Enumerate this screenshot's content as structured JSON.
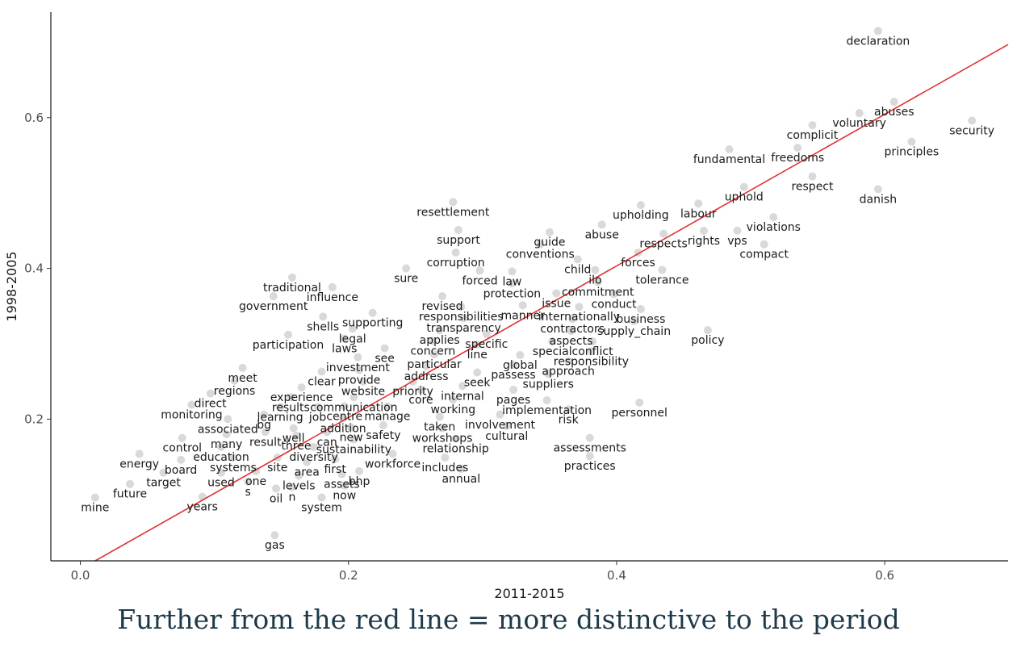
{
  "caption": "Further from the red line = more distinctive to the period",
  "chart_data": {
    "type": "scatter",
    "xlabel": "2011-2015",
    "ylabel": "1998-2005",
    "xlim": [
      -0.022,
      0.692
    ],
    "ylim": [
      0.012,
      0.74
    ],
    "x_ticks": [
      {
        "value": 0.0,
        "label": "0.0"
      },
      {
        "value": 0.2,
        "label": "0.2"
      },
      {
        "value": 0.4,
        "label": "0.4"
      },
      {
        "value": 0.6,
        "label": "0.6"
      }
    ],
    "y_ticks": [
      {
        "value": 0.2,
        "label": "0.2"
      },
      {
        "value": 0.4,
        "label": "0.4"
      },
      {
        "value": 0.6,
        "label": "0.6"
      }
    ],
    "grid": false,
    "reference_line": {
      "color": "#e03131",
      "points": [
        [
          0.011,
          0.012
        ],
        [
          0.692,
          0.697
        ]
      ]
    },
    "point_color": "#cccccc",
    "words": [
      {
        "w": "declaration",
        "x": 0.595,
        "y": 0.715
      },
      {
        "w": "abuses",
        "x": 0.607,
        "y": 0.621
      },
      {
        "w": "voluntary",
        "x": 0.581,
        "y": 0.606
      },
      {
        "w": "security",
        "x": 0.665,
        "y": 0.596
      },
      {
        "w": "complicit",
        "x": 0.546,
        "y": 0.59
      },
      {
        "w": "principles",
        "x": 0.62,
        "y": 0.568
      },
      {
        "w": "freedoms",
        "x": 0.535,
        "y": 0.56
      },
      {
        "w": "fundamental",
        "x": 0.484,
        "y": 0.558
      },
      {
        "w": "respect",
        "x": 0.546,
        "y": 0.522
      },
      {
        "w": "uphold",
        "x": 0.495,
        "y": 0.508
      },
      {
        "w": "danish",
        "x": 0.595,
        "y": 0.505
      },
      {
        "w": "resettlement",
        "x": 0.278,
        "y": 0.488
      },
      {
        "w": "upholding",
        "x": 0.418,
        "y": 0.484
      },
      {
        "w": "labour",
        "x": 0.461,
        "y": 0.486
      },
      {
        "w": "violations",
        "x": 0.517,
        "y": 0.468
      },
      {
        "w": "abuse",
        "x": 0.389,
        "y": 0.458
      },
      {
        "w": "support",
        "x": 0.282,
        "y": 0.451
      },
      {
        "w": "rights",
        "x": 0.465,
        "y": 0.45
      },
      {
        "w": "vps",
        "x": 0.49,
        "y": 0.45
      },
      {
        "w": "guide",
        "x": 0.35,
        "y": 0.448
      },
      {
        "w": "respects",
        "x": 0.435,
        "y": 0.446
      },
      {
        "w": "conventions",
        "x": 0.343,
        "y": 0.432
      },
      {
        "w": "compact",
        "x": 0.51,
        "y": 0.432
      },
      {
        "w": "forces",
        "x": 0.416,
        "y": 0.421
      },
      {
        "w": "corruption",
        "x": 0.28,
        "y": 0.421
      },
      {
        "w": "child",
        "x": 0.371,
        "y": 0.412
      },
      {
        "w": "sure",
        "x": 0.243,
        "y": 0.4
      },
      {
        "w": "forced",
        "x": 0.298,
        "y": 0.397
      },
      {
        "w": "law",
        "x": 0.322,
        "y": 0.396
      },
      {
        "w": "ilo",
        "x": 0.384,
        "y": 0.398
      },
      {
        "w": "tolerance",
        "x": 0.434,
        "y": 0.398
      },
      {
        "w": "traditional",
        "x": 0.158,
        "y": 0.388
      },
      {
        "w": "commitment",
        "x": 0.386,
        "y": 0.382
      },
      {
        "w": "protection",
        "x": 0.322,
        "y": 0.38
      },
      {
        "w": "influence",
        "x": 0.188,
        "y": 0.375
      },
      {
        "w": "issue",
        "x": 0.355,
        "y": 0.367
      },
      {
        "w": "conduct",
        "x": 0.398,
        "y": 0.366
      },
      {
        "w": "government",
        "x": 0.144,
        "y": 0.363
      },
      {
        "w": "revised",
        "x": 0.27,
        "y": 0.363
      },
      {
        "w": "manner",
        "x": 0.33,
        "y": 0.351
      },
      {
        "w": "internationally",
        "x": 0.372,
        "y": 0.349
      },
      {
        "w": "responsibilities",
        "x": 0.284,
        "y": 0.349
      },
      {
        "w": "business",
        "x": 0.418,
        "y": 0.346
      },
      {
        "w": "supporting",
        "x": 0.218,
        "y": 0.341
      },
      {
        "w": "shells",
        "x": 0.181,
        "y": 0.336
      },
      {
        "w": "contractors",
        "x": 0.367,
        "y": 0.333
      },
      {
        "w": "transparency",
        "x": 0.286,
        "y": 0.334
      },
      {
        "w": "supply_chain",
        "x": 0.413,
        "y": 0.33
      },
      {
        "w": "legal",
        "x": 0.203,
        "y": 0.32
      },
      {
        "w": "policy",
        "x": 0.468,
        "y": 0.318
      },
      {
        "w": "aspects",
        "x": 0.366,
        "y": 0.317
      },
      {
        "w": "applies",
        "x": 0.268,
        "y": 0.318
      },
      {
        "w": "participation",
        "x": 0.155,
        "y": 0.312
      },
      {
        "w": "specific",
        "x": 0.303,
        "y": 0.313
      },
      {
        "w": "laws",
        "x": 0.197,
        "y": 0.307
      },
      {
        "w": "concern",
        "x": 0.263,
        "y": 0.304
      },
      {
        "w": "special",
        "x": 0.352,
        "y": 0.303
      },
      {
        "w": "conflict",
        "x": 0.382,
        "y": 0.303
      },
      {
        "w": "line",
        "x": 0.296,
        "y": 0.299
      },
      {
        "w": "see",
        "x": 0.227,
        "y": 0.294
      },
      {
        "w": "responsibility",
        "x": 0.381,
        "y": 0.29
      },
      {
        "w": "particular",
        "x": 0.264,
        "y": 0.286
      },
      {
        "w": "global",
        "x": 0.328,
        "y": 0.285
      },
      {
        "w": "investment",
        "x": 0.207,
        "y": 0.282
      },
      {
        "w": "approach",
        "x": 0.364,
        "y": 0.277
      },
      {
        "w": "passess",
        "x": 0.323,
        "y": 0.272
      },
      {
        "w": "address",
        "x": 0.258,
        "y": 0.27
      },
      {
        "w": "meet",
        "x": 0.121,
        "y": 0.268
      },
      {
        "w": "provide",
        "x": 0.208,
        "y": 0.265
      },
      {
        "w": "clear",
        "x": 0.18,
        "y": 0.263
      },
      {
        "w": "seek",
        "x": 0.296,
        "y": 0.262
      },
      {
        "w": "suppliers",
        "x": 0.349,
        "y": 0.26
      },
      {
        "w": "regions",
        "x": 0.115,
        "y": 0.251
      },
      {
        "w": "website",
        "x": 0.211,
        "y": 0.25
      },
      {
        "w": "priority",
        "x": 0.248,
        "y": 0.25
      },
      {
        "w": "internal",
        "x": 0.285,
        "y": 0.244
      },
      {
        "w": "experience",
        "x": 0.165,
        "y": 0.242
      },
      {
        "w": "core",
        "x": 0.254,
        "y": 0.239
      },
      {
        "w": "pages",
        "x": 0.323,
        "y": 0.239
      },
      {
        "w": "direct",
        "x": 0.097,
        "y": 0.234
      },
      {
        "w": "results",
        "x": 0.157,
        "y": 0.229
      },
      {
        "w": "communication",
        "x": 0.204,
        "y": 0.229
      },
      {
        "w": "working",
        "x": 0.278,
        "y": 0.226
      },
      {
        "w": "implementation",
        "x": 0.348,
        "y": 0.225
      },
      {
        "w": "monitoring",
        "x": 0.083,
        "y": 0.219
      },
      {
        "w": "centre",
        "x": 0.197,
        "y": 0.217
      },
      {
        "w": "manage",
        "x": 0.229,
        "y": 0.217
      },
      {
        "w": "learning",
        "x": 0.149,
        "y": 0.216
      },
      {
        "w": "job",
        "x": 0.177,
        "y": 0.216
      },
      {
        "w": "personnel",
        "x": 0.417,
        "y": 0.222
      },
      {
        "w": "risk",
        "x": 0.364,
        "y": 0.213
      },
      {
        "w": "bg",
        "x": 0.137,
        "y": 0.206
      },
      {
        "w": "involvement",
        "x": 0.313,
        "y": 0.206
      },
      {
        "w": "taken",
        "x": 0.268,
        "y": 0.203
      },
      {
        "w": "associated",
        "x": 0.11,
        "y": 0.2
      },
      {
        "w": "addition",
        "x": 0.196,
        "y": 0.201
      },
      {
        "w": "cultural",
        "x": 0.318,
        "y": 0.191
      },
      {
        "w": "workshops",
        "x": 0.27,
        "y": 0.188
      },
      {
        "w": "well",
        "x": 0.159,
        "y": 0.188
      },
      {
        "w": "new",
        "x": 0.202,
        "y": 0.189
      },
      {
        "w": "safety",
        "x": 0.226,
        "y": 0.192
      },
      {
        "w": "result",
        "x": 0.138,
        "y": 0.183
      },
      {
        "w": "can",
        "x": 0.184,
        "y": 0.183
      },
      {
        "w": "many",
        "x": 0.109,
        "y": 0.18
      },
      {
        "w": "three",
        "x": 0.161,
        "y": 0.178
      },
      {
        "w": "control",
        "x": 0.076,
        "y": 0.175
      },
      {
        "w": "assessments",
        "x": 0.38,
        "y": 0.175
      },
      {
        "w": "relationship",
        "x": 0.28,
        "y": 0.174
      },
      {
        "w": "sustainability",
        "x": 0.204,
        "y": 0.173
      },
      {
        "w": "education",
        "x": 0.105,
        "y": 0.163
      },
      {
        "w": "diversity",
        "x": 0.174,
        "y": 0.163
      },
      {
        "w": "energy",
        "x": 0.044,
        "y": 0.154
      },
      {
        "w": "workforce",
        "x": 0.233,
        "y": 0.154
      },
      {
        "w": "practices",
        "x": 0.38,
        "y": 0.151
      },
      {
        "w": "site",
        "x": 0.147,
        "y": 0.149
      },
      {
        "w": "includes",
        "x": 0.272,
        "y": 0.149
      },
      {
        "w": "systems",
        "x": 0.114,
        "y": 0.149
      },
      {
        "w": "first",
        "x": 0.19,
        "y": 0.147
      },
      {
        "w": "board",
        "x": 0.075,
        "y": 0.146
      },
      {
        "w": "area",
        "x": 0.169,
        "y": 0.143
      },
      {
        "w": "annual",
        "x": 0.284,
        "y": 0.134
      },
      {
        "w": "bhp",
        "x": 0.208,
        "y": 0.131
      },
      {
        "w": "one",
        "x": 0.131,
        "y": 0.131
      },
      {
        "w": "target",
        "x": 0.062,
        "y": 0.129
      },
      {
        "w": "used",
        "x": 0.105,
        "y": 0.129
      },
      {
        "w": "assets",
        "x": 0.195,
        "y": 0.127
      },
      {
        "w": "levels",
        "x": 0.163,
        "y": 0.125
      },
      {
        "w": "s",
        "x": 0.125,
        "y": 0.117
      },
      {
        "w": "future",
        "x": 0.037,
        "y": 0.114
      },
      {
        "w": "now",
        "x": 0.197,
        "y": 0.112
      },
      {
        "w": "n",
        "x": 0.158,
        "y": 0.11
      },
      {
        "w": "oil",
        "x": 0.146,
        "y": 0.108
      },
      {
        "w": "years",
        "x": 0.091,
        "y": 0.097
      },
      {
        "w": "mine",
        "x": 0.011,
        "y": 0.096
      },
      {
        "w": "system",
        "x": 0.18,
        "y": 0.096
      },
      {
        "w": "gas",
        "x": 0.145,
        "y": 0.046
      }
    ]
  }
}
